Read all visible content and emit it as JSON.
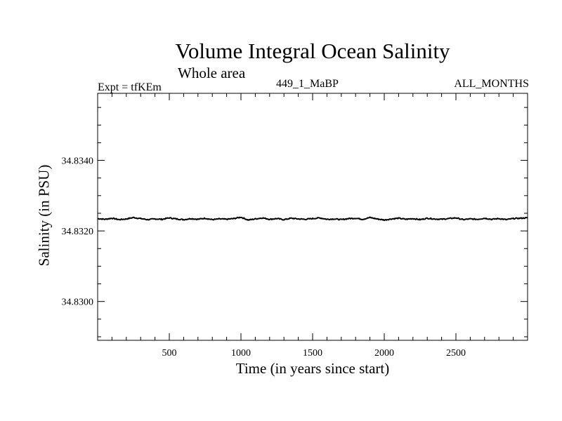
{
  "chart_data": {
    "type": "line",
    "title": "Volume Integral Ocean Salinity",
    "subtitle": "Whole area",
    "top_left_label": "Expt = tfKEm",
    "top_center_label": "449_1_MaBP",
    "top_right_label": "ALL_MONTHS",
    "xlabel": "Time (in years since start)",
    "ylabel": "Salinity (in PSU)",
    "xlim": [
      0,
      3000
    ],
    "ylim": [
      34.8289,
      34.8359
    ],
    "xticks": [
      500,
      1000,
      1500,
      2000,
      2500
    ],
    "xtick_labels": [
      "500",
      "1000",
      "1500",
      "2000",
      "2500"
    ],
    "yticks": [
      34.83,
      34.832,
      34.834
    ],
    "ytick_labels": [
      "34.8300",
      "34.8320",
      "34.8340"
    ],
    "grid": false,
    "line_color": "#000000",
    "series": [
      {
        "x": [
          0,
          50,
          100,
          150,
          200,
          250,
          300,
          350,
          400,
          450,
          500,
          550,
          600,
          650,
          700,
          750,
          800,
          850,
          900,
          950,
          1000,
          1050,
          1100,
          1150,
          1200,
          1250,
          1300,
          1350,
          1400,
          1450,
          1500,
          1550,
          1600,
          1650,
          1700,
          1750,
          1800,
          1850,
          1900,
          1950,
          2000,
          2050,
          2100,
          2150,
          2200,
          2250,
          2300,
          2350,
          2400,
          2450,
          2500,
          2550,
          2600,
          2650,
          2700,
          2750,
          2800,
          2850,
          2900,
          2950,
          3000
        ],
        "y": [
          34.83235,
          34.83233,
          34.83236,
          34.83232,
          34.83234,
          34.83238,
          34.83235,
          34.83232,
          34.83234,
          34.83233,
          34.83237,
          34.83234,
          34.83232,
          34.83235,
          34.83233,
          34.83236,
          34.83232,
          34.83234,
          34.83233,
          34.83235,
          34.83239,
          34.83231,
          34.83234,
          34.83237,
          34.83233,
          34.83235,
          34.83232,
          34.83236,
          34.83234,
          34.83233,
          34.83235,
          34.83237,
          34.83233,
          34.83234,
          34.83232,
          34.83235,
          34.83236,
          34.83233,
          34.83238,
          34.83234,
          34.83231,
          34.83234,
          34.83236,
          34.83233,
          34.83235,
          34.83232,
          34.83236,
          34.83234,
          34.83233,
          34.83235,
          34.83237,
          34.83232,
          34.83234,
          34.83233,
          34.83236,
          34.83233,
          34.83235,
          34.83232,
          34.83235,
          34.83236,
          34.83237
        ]
      }
    ]
  }
}
